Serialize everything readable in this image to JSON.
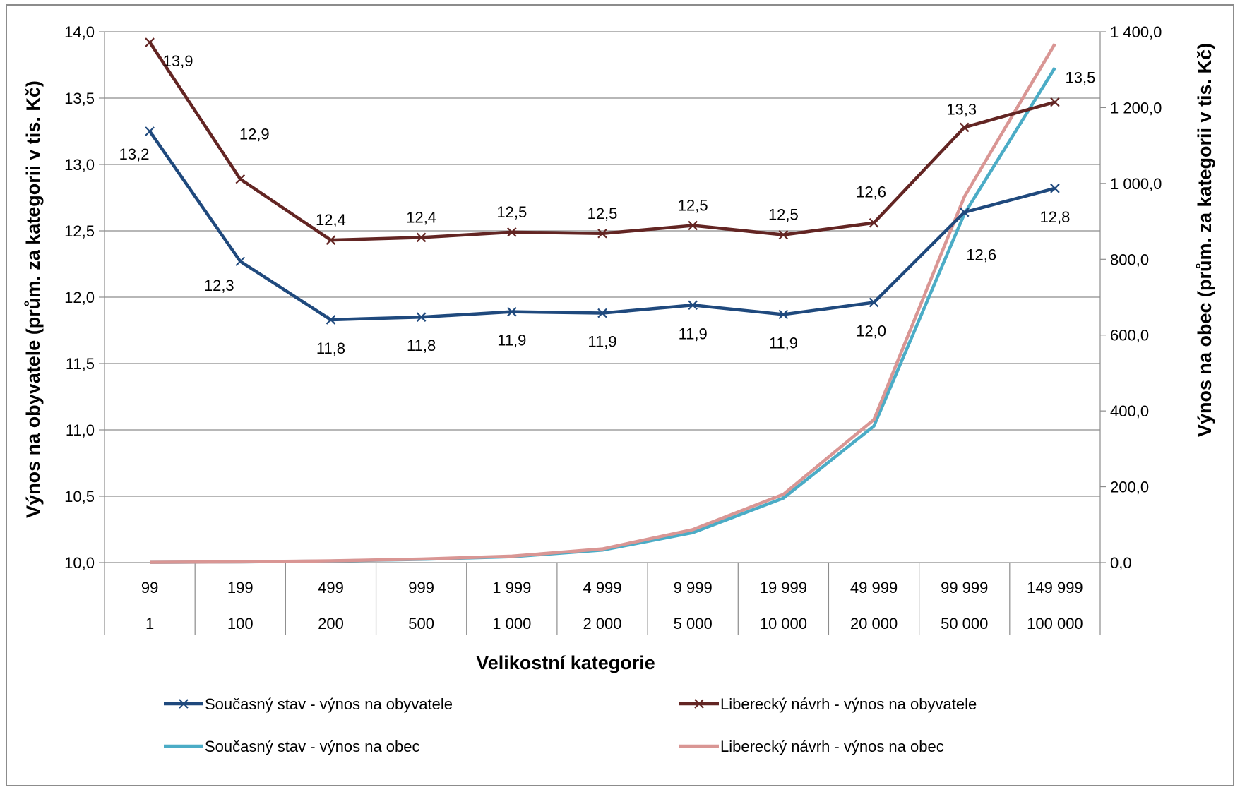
{
  "chart_data": {
    "type": "line",
    "xlabel": "Velikostní kategorie",
    "ylabel": "Výnos na obyvatele (prům. za kategorii v tis. Kč)",
    "y2label": "Výnos na obec (prům. za kategorii v tis. Kč)",
    "categories_upper": [
      "99",
      "199",
      "499",
      "999",
      "1 999",
      "4 999",
      "9 999",
      "19 999",
      "49 999",
      "99 999",
      "149 999"
    ],
    "categories_lower": [
      "1",
      "100",
      "200",
      "500",
      "1 000",
      "2 000",
      "5 000",
      "10 000",
      "20 000",
      "50 000",
      "100 000"
    ],
    "ylim": [
      10.0,
      14.0
    ],
    "y_ticks": [
      "10,0",
      "10,5",
      "11,0",
      "11,5",
      "12,0",
      "12,5",
      "13,0",
      "13,5",
      "14,0"
    ],
    "y2lim": [
      0,
      1400
    ],
    "y2_ticks": [
      "0,0",
      "200,0",
      "400,0",
      "600,0",
      "800,0",
      "1 000,0",
      "1 200,0",
      "1 400,0"
    ],
    "grid": true,
    "legend_position": "bottom",
    "series": [
      {
        "name": "Současný stav - výnos na obyvatele",
        "axis": "left",
        "color": "#1f497d",
        "marker": "x",
        "values": [
          13.25,
          12.27,
          11.83,
          11.85,
          11.89,
          11.88,
          11.94,
          11.87,
          11.96,
          12.64,
          12.82
        ],
        "labels": [
          "13,2",
          "12,3",
          "11,8",
          "11,8",
          "11,9",
          "11,9",
          "11,9",
          "11,9",
          "12,0",
          "12,6",
          "12,8"
        ]
      },
      {
        "name": "Liberecký návrh - výnos na obyvatele",
        "axis": "left",
        "color": "#632523",
        "marker": "x",
        "values": [
          13.92,
          12.89,
          12.43,
          12.45,
          12.49,
          12.48,
          12.54,
          12.47,
          12.56,
          13.28,
          13.47
        ],
        "labels": [
          "13,9",
          "12,9",
          "12,4",
          "12,4",
          "12,5",
          "12,5",
          "12,5",
          "12,5",
          "12,6",
          "13,3",
          "13,5"
        ]
      },
      {
        "name": "Současný stav - výnos na obec",
        "axis": "right",
        "color": "#4bacc6",
        "marker": "none",
        "values": [
          0.6,
          1.8,
          4.3,
          8.5,
          15.5,
          33.0,
          79.0,
          170.0,
          360.0,
          920.0,
          1305.0
        ]
      },
      {
        "name": "Liberecký návrh - výnos na obec",
        "axis": "right",
        "color": "#d99694",
        "marker": "none",
        "values": [
          0.7,
          1.9,
          4.6,
          9.2,
          17.0,
          36.0,
          87.0,
          180.0,
          377.0,
          965.0,
          1368.0
        ]
      }
    ]
  }
}
